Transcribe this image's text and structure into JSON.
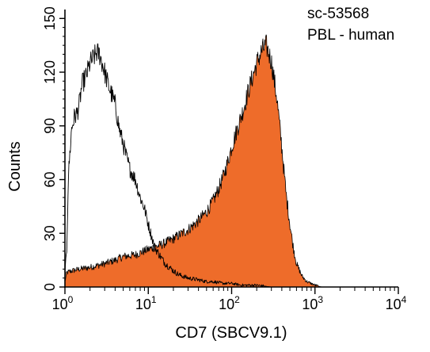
{
  "chart_data": {
    "type": "area",
    "annotations": [
      "sc-53568",
      "PBL - human"
    ],
    "xlabel": "CD7 (SBCV9.1)",
    "ylabel": "Counts",
    "xscale": "log",
    "xlim": [
      1,
      10000
    ],
    "ylim": [
      0,
      155
    ],
    "xticks": [
      {
        "value": 1,
        "base": "10",
        "exp": "0"
      },
      {
        "value": 10,
        "base": "10",
        "exp": "1"
      },
      {
        "value": 100,
        "base": "10",
        "exp": "2"
      },
      {
        "value": 1000,
        "base": "10",
        "exp": "3"
      },
      {
        "value": 10000,
        "base": "10",
        "exp": "4"
      }
    ],
    "yticks": [
      {
        "value": 0,
        "label": "0"
      },
      {
        "value": 30,
        "label": "30"
      },
      {
        "value": 60,
        "label": "60"
      },
      {
        "value": 90,
        "label": "90"
      },
      {
        "value": 120,
        "label": "120"
      },
      {
        "value": 150,
        "label": "150"
      }
    ],
    "grid": false,
    "series": [
      {
        "style": "open outline",
        "color": "#000000",
        "x": [
          1.0,
          1.05,
          1.1,
          1.2,
          1.3,
          1.4,
          1.5,
          1.6,
          1.8,
          2.0,
          2.2,
          2.4,
          2.6,
          2.8,
          3.0,
          3.3,
          3.6,
          4.0,
          4.5,
          5.0,
          5.5,
          6.0,
          7.0,
          8.0,
          9.0,
          10.0,
          11.0,
          12.0,
          14.0,
          16.0,
          18.0,
          20.0,
          23.0,
          26.0,
          30.0,
          40.0,
          50.0,
          60.0,
          80.0,
          100.0,
          130.0,
          160.0,
          200.0,
          300.0,
          500.0,
          1000.0
        ],
        "y": [
          8,
          20,
          62,
          88,
          95,
          97,
          103,
          113,
          118,
          125,
          128,
          131,
          130,
          125,
          120,
          113,
          108,
          102,
          88,
          80,
          72,
          66,
          60,
          50,
          44,
          35,
          28,
          22,
          17,
          13,
          11,
          9,
          7,
          6,
          5,
          4,
          3,
          3,
          2,
          2,
          1,
          1,
          1,
          0,
          0,
          0
        ]
      },
      {
        "style": "filled",
        "color": "#ee6c2a",
        "x": [
          1.0,
          1.05,
          1.2,
          1.5,
          2.0,
          3.0,
          4.0,
          5.0,
          7.0,
          10.0,
          15.0,
          20.0,
          30.0,
          40.0,
          50.0,
          60.0,
          70.0,
          80.0,
          90.0,
          100.0,
          120.0,
          140.0,
          160.0,
          180.0,
          200.0,
          230.0,
          260.0,
          300.0,
          350.0,
          400.0,
          450.0,
          500.0,
          550.0,
          600.0,
          700.0,
          800.0,
          1000.0,
          1200.0
        ],
        "y": [
          3,
          8,
          9,
          10,
          11,
          13,
          15,
          17,
          18,
          21,
          24,
          27,
          32,
          37,
          42,
          48,
          55,
          62,
          70,
          78,
          90,
          100,
          110,
          118,
          125,
          132,
          135,
          126,
          105,
          78,
          52,
          35,
          22,
          13,
          6,
          3,
          1,
          0
        ]
      }
    ]
  }
}
